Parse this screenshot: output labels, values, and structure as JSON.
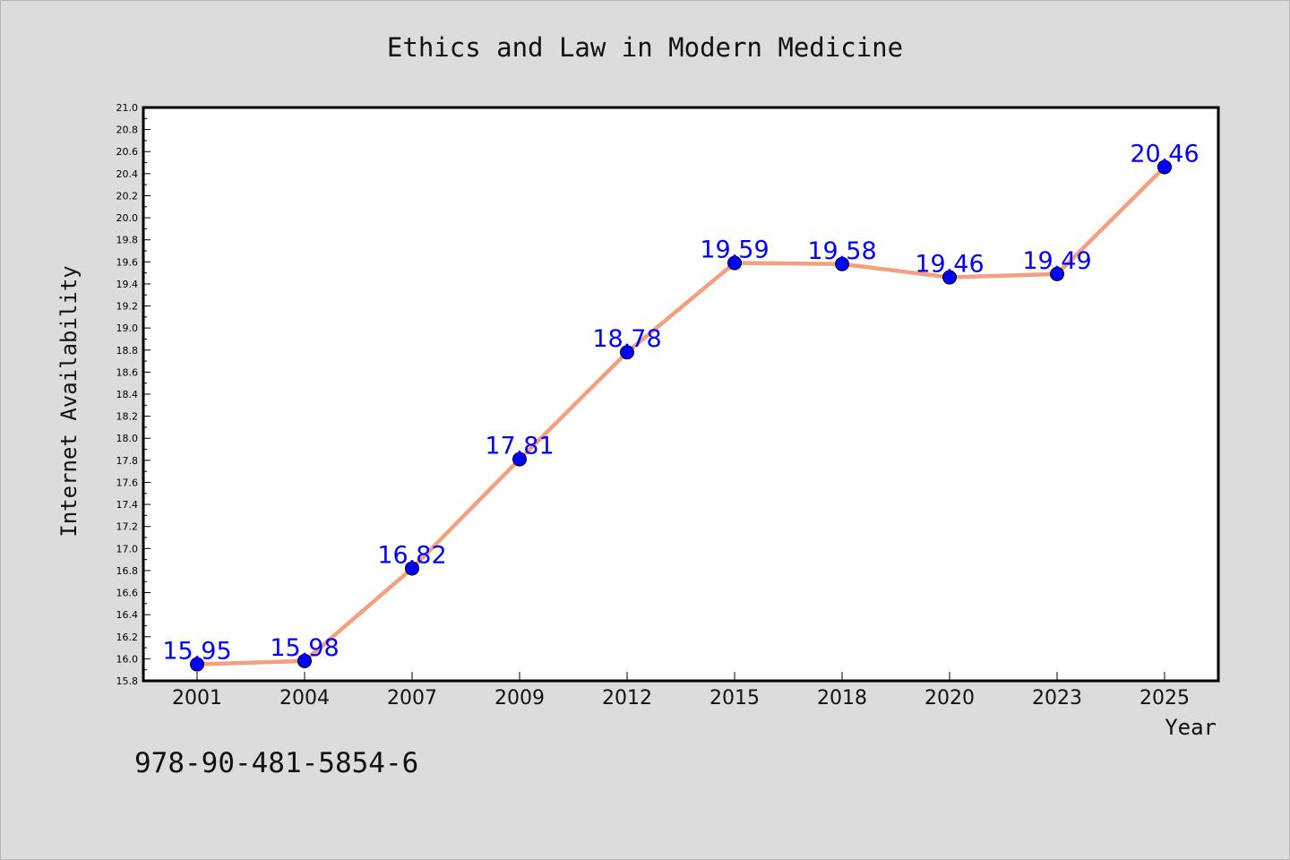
{
  "chart_data": {
    "type": "line",
    "title": "Ethics and Law in Modern Medicine",
    "xlabel": "Year",
    "ylabel": "Internet Availability",
    "categories": [
      "2001",
      "2004",
      "2007",
      "2009",
      "2012",
      "2015",
      "2018",
      "2020",
      "2023",
      "2025"
    ],
    "series": [
      {
        "values": [
          15.95,
          15.98,
          16.82,
          17.81,
          18.78,
          19.59,
          19.58,
          19.46,
          19.49,
          20.46
        ]
      }
    ],
    "data_labels": [
      "15.95",
      "15.98",
      "16.82",
      "17.81",
      "18.78",
      "19.59",
      "19.58",
      "19.46",
      "19.49",
      "20.46"
    ],
    "ylim": [
      15.8,
      21.0
    ],
    "yticks": [
      "15.8",
      "16.0",
      "16.2",
      "16.4",
      "16.6",
      "16.8",
      "17.0",
      "17.2",
      "17.4",
      "17.6",
      "17.8",
      "18.0",
      "18.2",
      "18.4",
      "18.6",
      "18.8",
      "19.0",
      "19.2",
      "19.4",
      "19.6",
      "19.8",
      "20.0",
      "20.2",
      "20.4",
      "20.6",
      "20.8",
      "21.0"
    ],
    "grid": false,
    "line_color": "#f4a07f",
    "marker_color": "#0000ff",
    "label_color": "#0000ff"
  },
  "footer": {
    "isbn": "978-90-481-5854-6"
  }
}
